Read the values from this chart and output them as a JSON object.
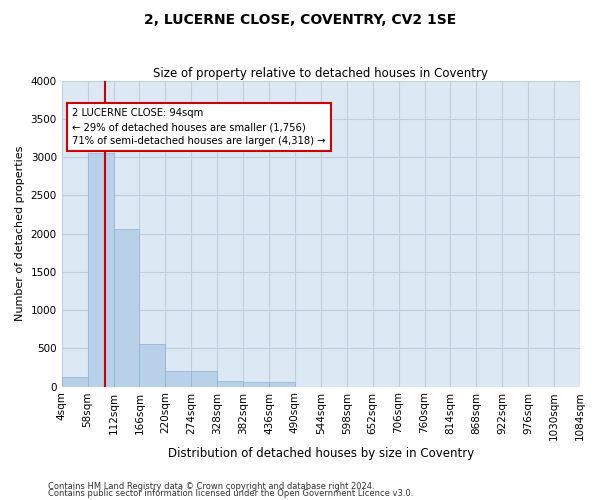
{
  "title": "2, LUCERNE CLOSE, COVENTRY, CV2 1SE",
  "subtitle": "Size of property relative to detached houses in Coventry",
  "xlabel": "Distribution of detached houses by size in Coventry",
  "ylabel": "Number of detached properties",
  "bin_labels": [
    "4sqm",
    "58sqm",
    "112sqm",
    "166sqm",
    "220sqm",
    "274sqm",
    "328sqm",
    "382sqm",
    "436sqm",
    "490sqm",
    "544sqm",
    "598sqm",
    "652sqm",
    "706sqm",
    "760sqm",
    "814sqm",
    "868sqm",
    "922sqm",
    "976sqm",
    "1030sqm",
    "1084sqm"
  ],
  "bin_edges": [
    4,
    58,
    112,
    166,
    220,
    274,
    328,
    382,
    436,
    490,
    544,
    598,
    652,
    706,
    760,
    814,
    868,
    922,
    976,
    1030,
    1084
  ],
  "bar_heights": [
    130,
    3060,
    2060,
    560,
    200,
    200,
    75,
    55,
    55,
    0,
    0,
    0,
    0,
    0,
    0,
    0,
    0,
    0,
    0,
    0
  ],
  "bar_color": "#b8d0e8",
  "bar_edge_color": "#8ab4d4",
  "grid_color": "#c0cfe0",
  "bg_color": "#dce8f4",
  "red_line_x": 94,
  "annotation_text": "2 LUCERNE CLOSE: 94sqm\n← 29% of detached houses are smaller (1,756)\n71% of semi-detached houses are larger (4,318) →",
  "annotation_box_color": "#ffffff",
  "annotation_box_edge": "#cc0000",
  "ylim": [
    0,
    4000
  ],
  "yticks": [
    0,
    500,
    1000,
    1500,
    2000,
    2500,
    3000,
    3500,
    4000
  ],
  "footer1": "Contains HM Land Registry data © Crown copyright and database right 2024.",
  "footer2": "Contains public sector information licensed under the Open Government Licence v3.0."
}
